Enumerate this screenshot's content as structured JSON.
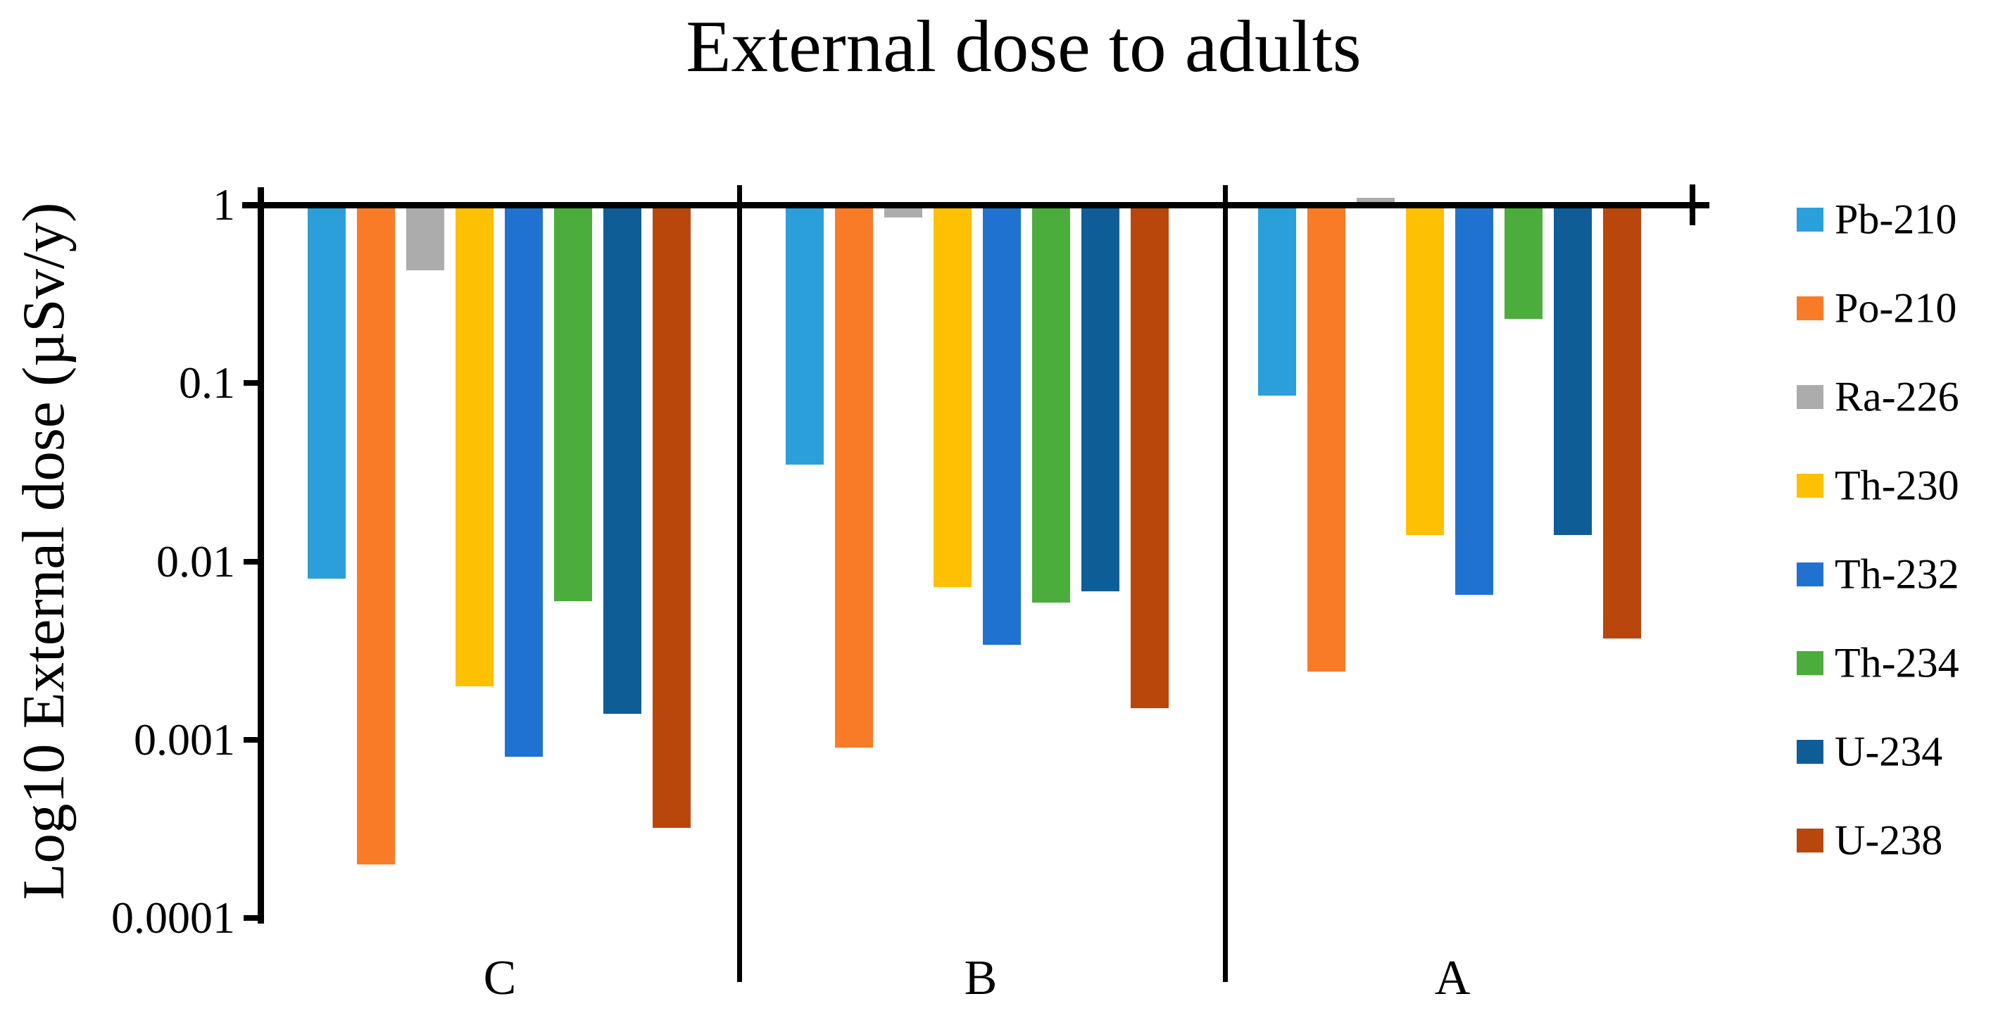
{
  "chart_data": {
    "type": "bar",
    "title": "External dose to adults",
    "ylabel": "Log10 External dose (µSv/y)",
    "xlabel": "",
    "y_scale": "log10",
    "ylim": [
      0.0001,
      1
    ],
    "ytick_labels": [
      "1",
      "0.1",
      "0.01",
      "0.001",
      "0.0001"
    ],
    "grid": "off",
    "legend_position": "right",
    "categories": [
      "C",
      "B",
      "A"
    ],
    "series": [
      {
        "name": "Pb-210",
        "color": "#2B9FD9",
        "values": [
          0.008,
          0.035,
          0.085
        ]
      },
      {
        "name": "Po-210",
        "color": "#F97B28",
        "values": [
          0.0002,
          0.0009,
          0.0024
        ]
      },
      {
        "name": "Ra-226",
        "color": "#ACACAC",
        "values": [
          0.43,
          0.85,
          1.1
        ]
      },
      {
        "name": "Th-230",
        "color": "#FEC002",
        "values": [
          0.002,
          0.0072,
          0.014
        ]
      },
      {
        "name": "Th-232",
        "color": "#2072D1",
        "values": [
          0.0008,
          0.0034,
          0.0065
        ]
      },
      {
        "name": "Th-234",
        "color": "#4AAD3C",
        "values": [
          0.006,
          0.0059,
          0.23
        ]
      },
      {
        "name": "U-234",
        "color": "#0E5D96",
        "values": [
          0.0014,
          0.0068,
          0.014
        ]
      },
      {
        "name": "U-238",
        "color": "#B9470B",
        "values": [
          0.00032,
          0.0015,
          0.0037
        ]
      }
    ]
  }
}
